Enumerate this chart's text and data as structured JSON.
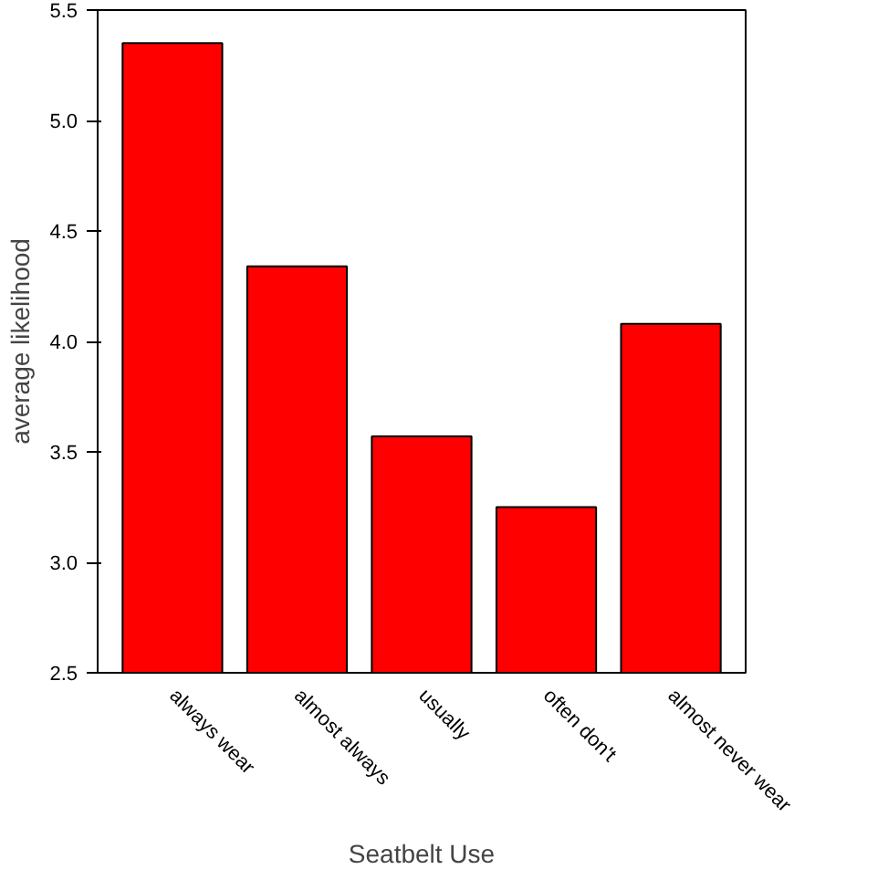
{
  "chart_data": {
    "type": "bar",
    "xlabel": "Seatbelt Use",
    "ylabel": "average likelihood",
    "categories": [
      "always wear",
      "almost always",
      "usually",
      "often don't",
      "almost never wear"
    ],
    "values": [
      5.35,
      4.34,
      3.57,
      3.25,
      4.08
    ],
    "color": "#ff0000",
    "ylim": [
      2.5,
      5.5
    ],
    "yticks": [
      2.5,
      {
        "value": 3,
        "label": "3.0"
      },
      3.5,
      {
        "value": 4,
        "label": "4.0"
      },
      4.5,
      {
        "value": 5,
        "label": "5.0"
      },
      5.5
    ],
    "grid": false
  }
}
